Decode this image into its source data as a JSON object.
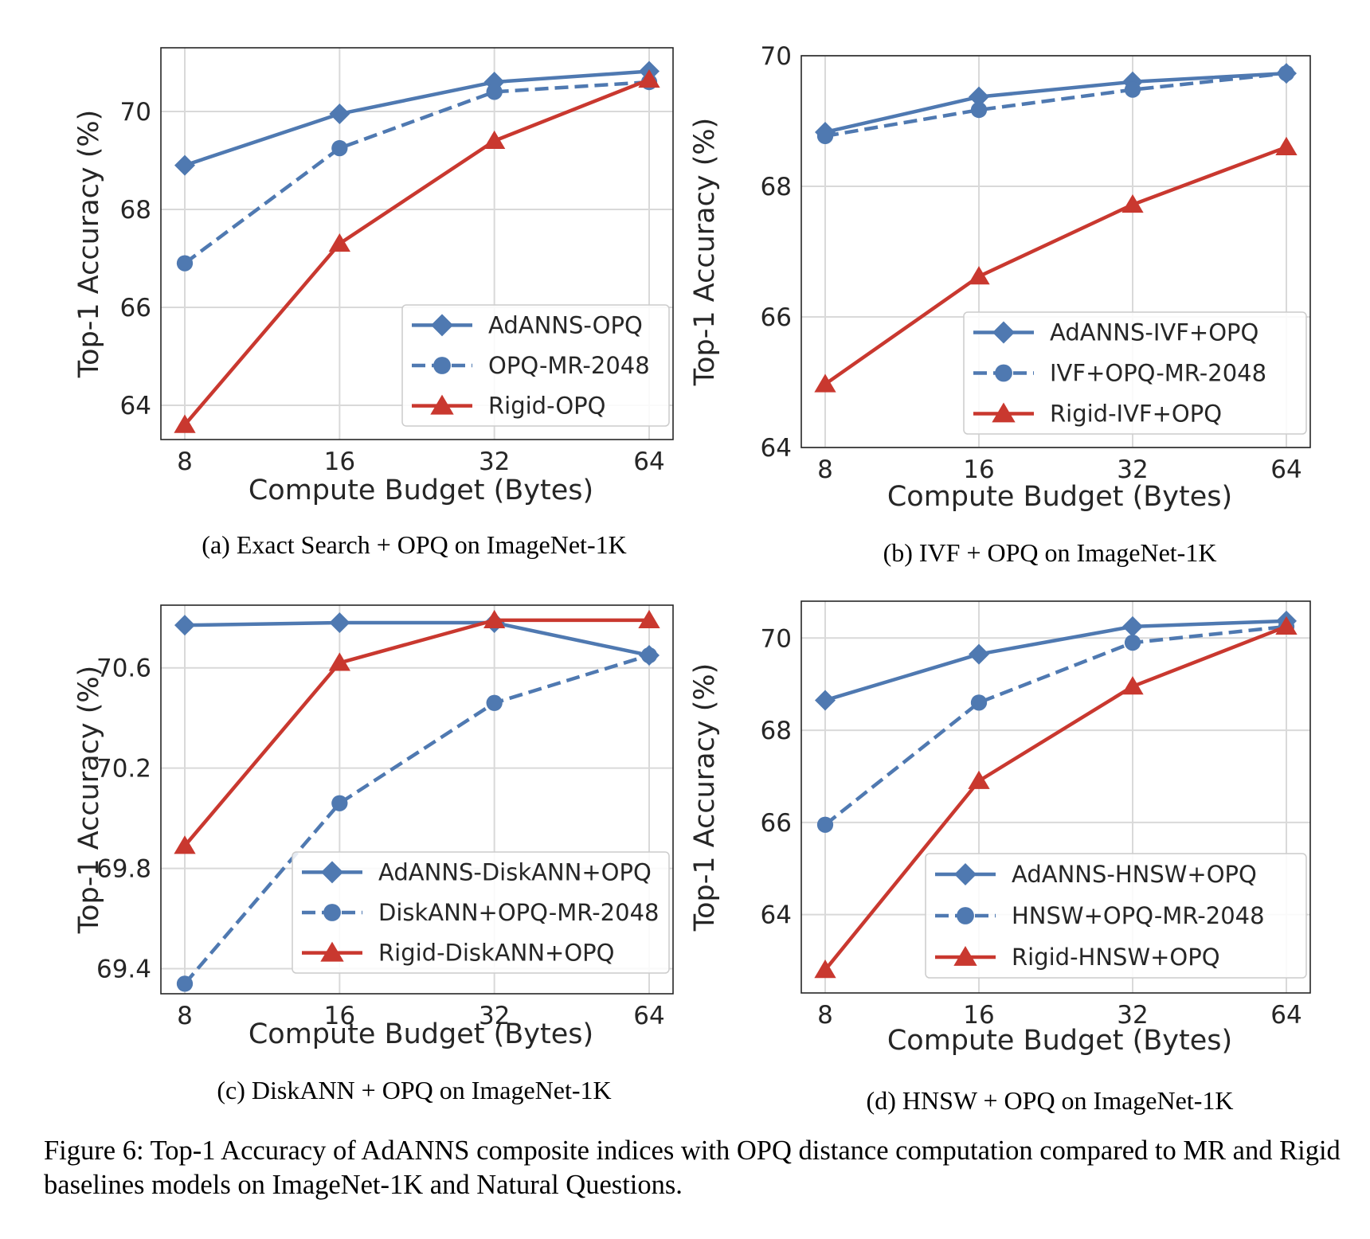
{
  "style": {
    "blue": "#4f79b1",
    "red": "#c9382f",
    "grid": "#d9d9d9",
    "frame": "#262626"
  },
  "chart_data": [
    {
      "type": "line",
      "caption": "(a) Exact Search + OPQ on ImageNet-1K",
      "xlabel": "Compute Budget (Bytes)",
      "ylabel": "Top-1 Accuracy (%)",
      "x_scale": "log2",
      "x": [
        8,
        16,
        32,
        64
      ],
      "x_ticks": [
        "8",
        "16",
        "32",
        "64"
      ],
      "ylim": [
        63.3,
        71.3
      ],
      "y_ticks": [
        64,
        66,
        68,
        70
      ],
      "y_tick_labels": [
        "64",
        "66",
        "68",
        "70"
      ],
      "grid": true,
      "legend": "lower-right",
      "series": [
        {
          "name": "AdANNS-OPQ",
          "values": [
            68.9,
            69.95,
            70.6,
            70.82
          ],
          "color": "#4f79b1",
          "dash": "solid",
          "marker": "diamond"
        },
        {
          "name": "OPQ-MR-2048",
          "values": [
            66.9,
            69.25,
            70.4,
            70.6
          ],
          "color": "#4f79b1",
          "dash": "dashed",
          "marker": "circle"
        },
        {
          "name": "Rigid-OPQ",
          "values": [
            63.6,
            67.3,
            69.4,
            70.65
          ],
          "color": "#c9382f",
          "dash": "solid",
          "marker": "triangle"
        }
      ]
    },
    {
      "type": "line",
      "caption": "(b) IVF + OPQ on ImageNet-1K",
      "xlabel": "Compute Budget (Bytes)",
      "ylabel": "Top-1 Accuracy (%)",
      "x_scale": "log2",
      "x": [
        8,
        16,
        32,
        64
      ],
      "x_ticks": [
        "8",
        "16",
        "32",
        "64"
      ],
      "ylim": [
        64,
        70
      ],
      "y_ticks": [
        64,
        66,
        68,
        70
      ],
      "y_tick_labels": [
        "64",
        "66",
        "68",
        "70"
      ],
      "grid": true,
      "legend": "lower-right",
      "series": [
        {
          "name": "AdANNS-IVF+OPQ",
          "values": [
            68.83,
            69.37,
            69.6,
            69.73
          ],
          "color": "#4f79b1",
          "dash": "solid",
          "marker": "diamond"
        },
        {
          "name": "IVF+OPQ-MR-2048",
          "values": [
            68.77,
            69.17,
            69.48,
            69.73
          ],
          "color": "#4f79b1",
          "dash": "dashed",
          "marker": "circle"
        },
        {
          "name": "Rigid-IVF+OPQ",
          "values": [
            64.97,
            66.62,
            67.72,
            68.6
          ],
          "color": "#c9382f",
          "dash": "solid",
          "marker": "triangle"
        }
      ]
    },
    {
      "type": "line",
      "caption": "(c) DiskANN + OPQ on ImageNet-1K",
      "xlabel": "Compute Budget (Bytes)",
      "ylabel": "Top-1 Accuracy (%)",
      "x_scale": "log2",
      "x": [
        8,
        16,
        32,
        64
      ],
      "x_ticks": [
        "8",
        "16",
        "32",
        "64"
      ],
      "ylim": [
        69.3,
        70.85
      ],
      "y_ticks": [
        69.4,
        69.8,
        70.2,
        70.6
      ],
      "y_tick_labels": [
        "69.4",
        "69.8",
        "70.2",
        "70.6"
      ],
      "grid": true,
      "legend": "lower-right",
      "series": [
        {
          "name": "AdANNS-DiskANN+OPQ",
          "values": [
            70.77,
            70.78,
            70.78,
            70.65
          ],
          "color": "#4f79b1",
          "dash": "solid",
          "marker": "diamond"
        },
        {
          "name": "DiskANN+OPQ-MR-2048",
          "values": [
            69.34,
            70.06,
            70.46,
            70.65
          ],
          "color": "#4f79b1",
          "dash": "dashed",
          "marker": "circle"
        },
        {
          "name": "Rigid-DiskANN+OPQ",
          "values": [
            69.89,
            70.62,
            70.79,
            70.79
          ],
          "color": "#c9382f",
          "dash": "solid",
          "marker": "triangle"
        }
      ]
    },
    {
      "type": "line",
      "caption": "(d) HNSW + OPQ on ImageNet-1K",
      "xlabel": "Compute Budget (Bytes)",
      "ylabel": "Top-1 Accuracy (%)",
      "x_scale": "log2",
      "x": [
        8,
        16,
        32,
        64
      ],
      "x_ticks": [
        "8",
        "16",
        "32",
        "64"
      ],
      "ylim": [
        62.3,
        70.8
      ],
      "y_ticks": [
        64,
        66,
        68,
        70
      ],
      "y_tick_labels": [
        "64",
        "66",
        "68",
        "70"
      ],
      "grid": true,
      "legend": "lower-right",
      "series": [
        {
          "name": "AdANNS-HNSW+OPQ",
          "values": [
            68.65,
            69.65,
            70.25,
            70.37
          ],
          "color": "#4f79b1",
          "dash": "solid",
          "marker": "diamond"
        },
        {
          "name": "HNSW+OPQ-MR-2048",
          "values": [
            65.95,
            68.6,
            69.9,
            70.25
          ],
          "color": "#4f79b1",
          "dash": "dashed",
          "marker": "circle"
        },
        {
          "name": "Rigid-HNSW+OPQ",
          "values": [
            62.8,
            66.9,
            68.95,
            70.25
          ],
          "color": "#c9382f",
          "dash": "solid",
          "marker": "triangle"
        }
      ]
    }
  ],
  "figure_caption": "Figure 6: Top-1 Accuracy of AdANNS composite indices with OPQ distance computation compared to MR and Rigid baselines models on ImageNet-1K and Natural Questions."
}
